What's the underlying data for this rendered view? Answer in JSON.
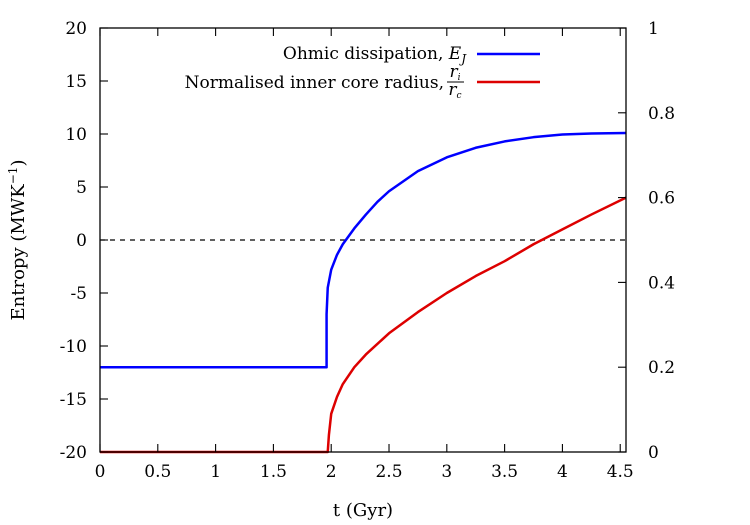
{
  "chart_data": {
    "type": "line",
    "x_axis": {
      "label": "t (Gyr)",
      "range": [
        0,
        4.55
      ],
      "ticks": [
        0,
        0.5,
        1,
        1.5,
        2,
        2.5,
        3,
        3.5,
        4,
        4.5
      ],
      "tick_labels": [
        "0",
        "0.5",
        "1",
        "1.5",
        "2",
        "2.5",
        "3",
        "3.5",
        "4",
        "4.5"
      ]
    },
    "y_axis_left": {
      "label": "Entropy (MWK",
      "label_superscript": "−1",
      "label_close": ")",
      "range": [
        -20,
        20
      ],
      "ticks": [
        -20,
        -15,
        -10,
        -5,
        0,
        5,
        10,
        15,
        20
      ],
      "tick_labels": [
        "-20",
        "-15",
        "-10",
        "-5",
        "0",
        "5",
        "10",
        "15",
        "20"
      ]
    },
    "y_axis_right": {
      "range": [
        0,
        1
      ],
      "ticks": [
        0,
        0.2,
        0.4,
        0.6,
        0.8,
        1
      ],
      "tick_labels": [
        "0",
        "0.2",
        "0.4",
        "0.6",
        "0.8",
        "1"
      ]
    },
    "reference_line": {
      "y": 0,
      "style": "dashed",
      "color": "#000000"
    },
    "legend": {
      "position": "top-right",
      "ohmic_text": "Ohmic dissipation, ",
      "ohmic_symbol": "E",
      "ohmic_sub": "J",
      "radius_text": "Normalised inner core radius, ",
      "radius_num": "r",
      "radius_num_sub": "i",
      "radius_den": "r",
      "radius_den_sub": "c"
    },
    "series": [
      {
        "color": "#0000ff",
        "axis": "left",
        "x": [
          0,
          1.96,
          1.96,
          1.97,
          2.0,
          2.05,
          2.1,
          2.2,
          2.3,
          2.4,
          2.5,
          2.75,
          3.0,
          3.25,
          3.5,
          3.75,
          4.0,
          4.25,
          4.55
        ],
        "y": [
          -12,
          -12,
          -7,
          -4.5,
          -2.8,
          -1.4,
          -0.4,
          1.1,
          2.4,
          3.6,
          4.6,
          6.5,
          7.8,
          8.7,
          9.3,
          9.7,
          9.95,
          10.05,
          10.1
        ]
      },
      {
        "color": "#dd0000",
        "axis": "right",
        "x": [
          0,
          1.97,
          1.98,
          2.0,
          2.05,
          2.1,
          2.2,
          2.3,
          2.5,
          2.75,
          3.0,
          3.25,
          3.5,
          3.75,
          4.0,
          4.25,
          4.55
        ],
        "y": [
          0,
          0,
          0.04,
          0.09,
          0.13,
          0.16,
          0.2,
          0.23,
          0.28,
          0.33,
          0.375,
          0.415,
          0.45,
          0.49,
          0.525,
          0.56,
          0.6
        ]
      }
    ]
  }
}
